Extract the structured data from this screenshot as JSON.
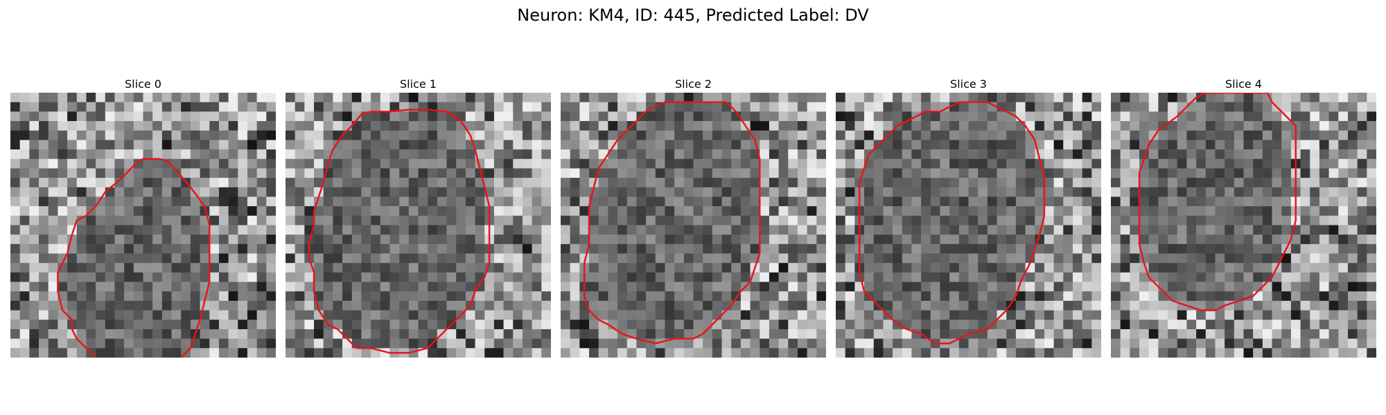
{
  "figure": {
    "title": "Neuron: KM4, ID: 445, Predicted Label: DV"
  },
  "panels": [
    {
      "title": "Slice 0",
      "background": "gray",
      "contour_color": "#e8141a",
      "contour": [
        [
          15.7,
          7.0
        ],
        [
          14.0,
          7.0
        ],
        [
          13.2,
          7.5
        ],
        [
          11.8,
          9.0
        ],
        [
          10.0,
          10.5
        ],
        [
          9.0,
          12.0
        ],
        [
          8.0,
          13.0
        ],
        [
          7.0,
          13.5
        ],
        [
          6.5,
          15.0
        ],
        [
          6.0,
          17.0
        ],
        [
          5.0,
          19.0
        ],
        [
          5.0,
          21.0
        ],
        [
          5.5,
          23.0
        ],
        [
          6.5,
          24.0
        ],
        [
          6.5,
          25.0
        ],
        [
          7.0,
          26.0
        ],
        [
          9.0,
          28.0
        ],
        [
          10.5,
          29.0
        ],
        [
          12.0,
          29.5
        ],
        [
          14.0,
          29.5
        ],
        [
          16.0,
          29.5
        ],
        [
          18.0,
          28.0
        ],
        [
          19.0,
          27.0
        ],
        [
          19.5,
          25.5
        ],
        [
          20.0,
          24.0
        ],
        [
          20.5,
          22.0
        ],
        [
          21.0,
          20.0
        ],
        [
          21.0,
          18.0
        ],
        [
          21.0,
          16.0
        ],
        [
          21.0,
          14.0
        ],
        [
          20.5,
          12.0
        ],
        [
          19.0,
          10.0
        ],
        [
          17.5,
          8.2
        ],
        [
          16.5,
          7.2
        ]
      ]
    },
    {
      "title": "Slice 1",
      "background": "gray",
      "contour_color": "#e8141a",
      "contour": [
        [
          9.0,
          2.0
        ],
        [
          8.0,
          2.3
        ],
        [
          7.0,
          3.5
        ],
        [
          6.0,
          4.5
        ],
        [
          5.0,
          6.0
        ],
        [
          4.5,
          7.5
        ],
        [
          4.0,
          9.5
        ],
        [
          3.5,
          11.0
        ],
        [
          3.0,
          12.5
        ],
        [
          3.0,
          14.0
        ],
        [
          2.5,
          16.0
        ],
        [
          2.5,
          17.5
        ],
        [
          3.0,
          19.0
        ],
        [
          3.0,
          21.0
        ],
        [
          3.5,
          23.0
        ],
        [
          4.5,
          24.5
        ],
        [
          5.5,
          25.0
        ],
        [
          6.5,
          26.0
        ],
        [
          7.5,
          27.0
        ],
        [
          9.0,
          27.0
        ],
        [
          11.0,
          27.5
        ],
        [
          13.0,
          27.5
        ],
        [
          15.0,
          27.0
        ],
        [
          16.0,
          26.0
        ],
        [
          17.0,
          25.0
        ],
        [
          18.5,
          23.5
        ],
        [
          19.5,
          22.5
        ],
        [
          20.0,
          21.0
        ],
        [
          21.0,
          19.5
        ],
        [
          21.5,
          18.0
        ],
        [
          21.5,
          16.0
        ],
        [
          21.5,
          14.0
        ],
        [
          21.5,
          12.0
        ],
        [
          21.0,
          10.0
        ],
        [
          20.5,
          8.0
        ],
        [
          20.0,
          6.0
        ],
        [
          19.5,
          4.5
        ],
        [
          18.5,
          3.0
        ],
        [
          17.0,
          2.0
        ],
        [
          15.0,
          1.8
        ],
        [
          13.0,
          1.8
        ],
        [
          11.0,
          2.0
        ]
      ]
    },
    {
      "title": "Slice 2",
      "background": "gray",
      "contour_color": "#e8141a",
      "contour": [
        [
          11.0,
          1.0
        ],
        [
          10.0,
          1.5
        ],
        [
          9.0,
          2.0
        ],
        [
          8.0,
          3.0
        ],
        [
          7.0,
          4.0
        ],
        [
          6.0,
          5.0
        ],
        [
          5.0,
          6.5
        ],
        [
          4.0,
          8.0
        ],
        [
          3.5,
          10.0
        ],
        [
          3.0,
          12.0
        ],
        [
          3.0,
          14.0
        ],
        [
          3.0,
          16.0
        ],
        [
          2.5,
          18.0
        ],
        [
          2.5,
          20.0
        ],
        [
          2.5,
          21.5
        ],
        [
          3.0,
          23.0
        ],
        [
          4.0,
          24.0
        ],
        [
          5.0,
          24.5
        ],
        [
          6.5,
          25.5
        ],
        [
          8.0,
          26.0
        ],
        [
          10.0,
          26.5
        ],
        [
          12.0,
          26.0
        ],
        [
          14.0,
          26.0
        ],
        [
          15.0,
          25.5
        ],
        [
          16.0,
          24.5
        ],
        [
          17.0,
          23.5
        ],
        [
          18.0,
          22.5
        ],
        [
          19.0,
          21.0
        ],
        [
          20.0,
          20.0
        ],
        [
          20.5,
          18.5
        ],
        [
          21.0,
          17.0
        ],
        [
          21.0,
          15.0
        ],
        [
          21.0,
          13.0
        ],
        [
          21.0,
          11.0
        ],
        [
          21.0,
          9.0
        ],
        [
          21.0,
          7.0
        ],
        [
          20.5,
          5.0
        ],
        [
          19.5,
          3.5
        ],
        [
          18.5,
          2.0
        ],
        [
          17.5,
          1.0
        ],
        [
          15.0,
          1.0
        ],
        [
          13.0,
          1.0
        ]
      ]
    },
    {
      "title": "Slice 3",
      "background": "gray",
      "contour_color": "#e8141a",
      "contour": [
        [
          13.0,
          1.0
        ],
        [
          12.0,
          1.5
        ],
        [
          11.0,
          2.0
        ],
        [
          9.5,
          2.0
        ],
        [
          8.5,
          2.5
        ],
        [
          7.5,
          3.0
        ],
        [
          6.5,
          3.5
        ],
        [
          5.5,
          4.5
        ],
        [
          4.5,
          5.5
        ],
        [
          3.5,
          6.5
        ],
        [
          3.0,
          8.0
        ],
        [
          2.5,
          9.5
        ],
        [
          2.5,
          11.0
        ],
        [
          2.5,
          13.0
        ],
        [
          2.5,
          15.0
        ],
        [
          2.5,
          17.0
        ],
        [
          2.5,
          19.0
        ],
        [
          3.0,
          21.0
        ],
        [
          4.0,
          22.0
        ],
        [
          5.0,
          23.0
        ],
        [
          6.0,
          24.0
        ],
        [
          7.5,
          25.0
        ],
        [
          9.0,
          25.5
        ],
        [
          10.5,
          26.5
        ],
        [
          12.0,
          26.5
        ],
        [
          14.0,
          25.5
        ],
        [
          16.0,
          25.0
        ],
        [
          17.0,
          24.0
        ],
        [
          18.0,
          23.0
        ],
        [
          19.0,
          21.5
        ],
        [
          19.5,
          20.0
        ],
        [
          20.5,
          18.0
        ],
        [
          21.0,
          16.5
        ],
        [
          21.5,
          15.0
        ],
        [
          22.0,
          13.0
        ],
        [
          22.0,
          11.0
        ],
        [
          22.0,
          9.0
        ],
        [
          21.5,
          7.0
        ],
        [
          21.0,
          5.0
        ],
        [
          20.0,
          3.5
        ],
        [
          19.0,
          2.5
        ],
        [
          18.0,
          2.0
        ],
        [
          17.0,
          1.5
        ],
        [
          16.0,
          1.0
        ],
        [
          14.5,
          1.0
        ]
      ]
    },
    {
      "title": "Slice 4",
      "background": "gray",
      "contour_color": "#e8141a",
      "contour": [
        [
          10.0,
          0.0
        ],
        [
          9.0,
          0.5
        ],
        [
          8.0,
          1.5
        ],
        [
          7.0,
          2.5
        ],
        [
          5.0,
          4.0
        ],
        [
          4.0,
          5.5
        ],
        [
          3.5,
          7.0
        ],
        [
          3.0,
          8.5
        ],
        [
          3.0,
          10.0
        ],
        [
          3.0,
          12.0
        ],
        [
          3.0,
          14.0
        ],
        [
          3.0,
          16.0
        ],
        [
          3.5,
          18.0
        ],
        [
          4.0,
          19.5
        ],
        [
          5.5,
          21.0
        ],
        [
          6.5,
          22.0
        ],
        [
          8.0,
          22.5
        ],
        [
          9.5,
          23.0
        ],
        [
          11.0,
          23.0
        ],
        [
          12.0,
          22.5
        ],
        [
          13.5,
          22.0
        ],
        [
          15.0,
          21.5
        ],
        [
          16.0,
          20.5
        ],
        [
          17.0,
          19.5
        ],
        [
          18.0,
          17.5
        ],
        [
          19.0,
          15.5
        ],
        [
          19.5,
          13.5
        ],
        [
          19.5,
          11.5
        ],
        [
          19.5,
          9.5
        ],
        [
          19.5,
          7.5
        ],
        [
          19.5,
          5.5
        ],
        [
          19.5,
          3.5
        ],
        [
          18.5,
          2.5
        ],
        [
          17.0,
          1.0
        ],
        [
          16.5,
          0.0
        ]
      ]
    }
  ]
}
